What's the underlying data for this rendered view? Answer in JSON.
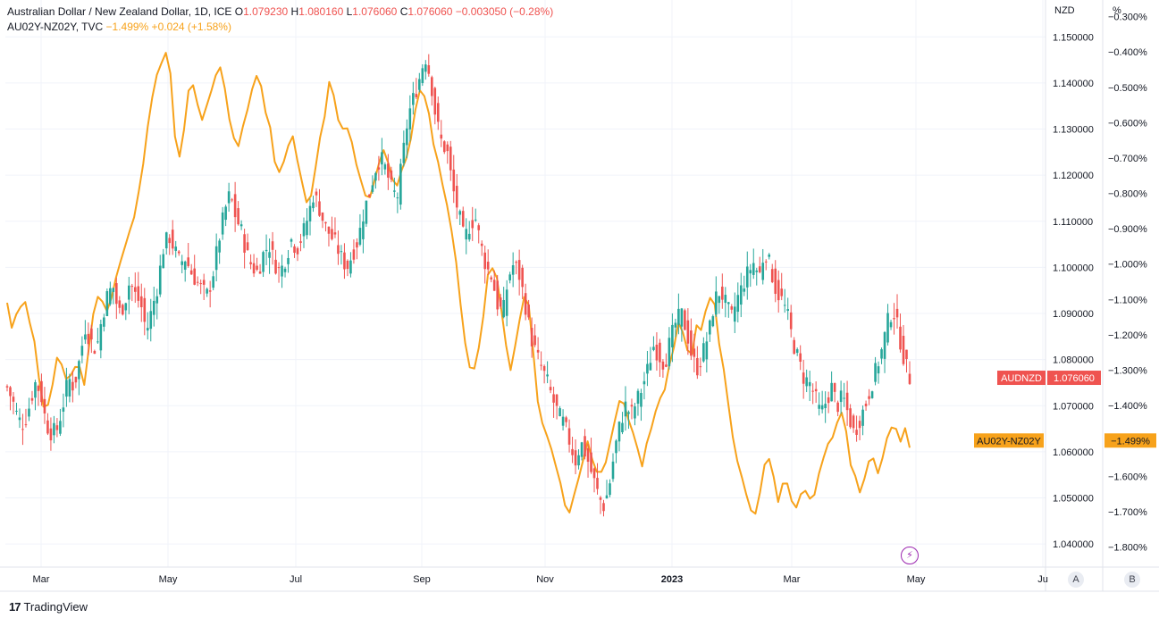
{
  "header": {
    "symbol": "Australian Dollar / New Zealand Dollar, 1D, ICE",
    "o_label": "O",
    "o_value": "1.079230",
    "h_label": "H",
    "h_value": "1.080160",
    "l_label": "L",
    "l_value": "1.076060",
    "c_label": "C",
    "c_value": "1.076060",
    "change": "−0.003050 (−0.28%)",
    "overlay_symbol": "AU02Y-NZ02Y, TVC",
    "overlay_values": "−1.499%  +0.024 (+1.58%)"
  },
  "footer": {
    "brand": "TradingView"
  },
  "buttons": {
    "a": "A",
    "b": "B"
  },
  "colors": {
    "up": "#26a69a",
    "down": "#ef5350",
    "spread": "#f7a21b",
    "grid": "#f0f3fa",
    "axis_text": "#131722",
    "event": "#9c27b0"
  },
  "chart_data": {
    "type": "candlestick_with_line_overlay",
    "title": "Australian Dollar / New Zealand Dollar, 1D, ICE",
    "left_axis": {
      "unit_label": "NZD",
      "range": [
        1.035,
        1.158
      ],
      "ticks": [
        "1.150000",
        "1.140000",
        "1.130000",
        "1.120000",
        "1.110000",
        "1.100000",
        "1.090000",
        "1.080000",
        "1.070000",
        "1.060000",
        "1.050000",
        "1.040000"
      ]
    },
    "right_axis": {
      "unit_label": "%",
      "range": [
        -1.857,
        -0.253
      ],
      "ticks": [
        "-0.300%",
        "-0.400%",
        "-0.500%",
        "-0.600%",
        "-0.700%",
        "-0.800%",
        "-0.900%",
        "-1.000%",
        "-1.100%",
        "-1.200%",
        "-1.300%",
        "-1.400%",
        "-1.500%",
        "-1.600%",
        "-1.700%",
        "-1.800%"
      ]
    },
    "x_labels": [
      "Mar",
      "May",
      "Jul",
      "Sep",
      "Nov",
      "2023",
      "Mar",
      "May",
      "Ju"
    ],
    "price_anchors": [
      1.074,
      1.071,
      1.067,
      1.066,
      1.07,
      1.075,
      1.073,
      1.066,
      1.064,
      1.065,
      1.07,
      1.076,
      1.074,
      1.08,
      1.087,
      1.084,
      1.082,
      1.089,
      1.094,
      1.096,
      1.09,
      1.092,
      1.097,
      1.094,
      1.092,
      1.086,
      1.091,
      1.096,
      1.104,
      1.107,
      1.104,
      1.101,
      1.102,
      1.099,
      1.097,
      1.095,
      1.094,
      1.099,
      1.106,
      1.112,
      1.116,
      1.111,
      1.108,
      1.103,
      1.1,
      1.099,
      1.103,
      1.105,
      1.101,
      1.099,
      1.102,
      1.106,
      1.104,
      1.107,
      1.111,
      1.116,
      1.113,
      1.109,
      1.107,
      1.105,
      1.102,
      1.1,
      1.103,
      1.106,
      1.112,
      1.116,
      1.121,
      1.124,
      1.121,
      1.117,
      1.115,
      1.124,
      1.133,
      1.137,
      1.141,
      1.146,
      1.141,
      1.132,
      1.127,
      1.125,
      1.117,
      1.112,
      1.106,
      1.109,
      1.111,
      1.105,
      1.1,
      1.098,
      1.092,
      1.09,
      1.098,
      1.101,
      1.098,
      1.092,
      1.085,
      1.081,
      1.078,
      1.075,
      1.071,
      1.068,
      1.066,
      1.062,
      1.058,
      1.062,
      1.059,
      1.055,
      1.051,
      1.048,
      1.052,
      1.06,
      1.066,
      1.07,
      1.068,
      1.071,
      1.074,
      1.078,
      1.083,
      1.081,
      1.079,
      1.084,
      1.088,
      1.09,
      1.086,
      1.08,
      1.078,
      1.082,
      1.086,
      1.093,
      1.095,
      1.092,
      1.089,
      1.093,
      1.096,
      1.099,
      1.101,
      1.098,
      1.104,
      1.1,
      1.095,
      1.093,
      1.09,
      1.084,
      1.08,
      1.076,
      1.075,
      1.072,
      1.068,
      1.071,
      1.074,
      1.07,
      1.072,
      1.068,
      1.064,
      1.067,
      1.07,
      1.074,
      1.078,
      1.082,
      1.088,
      1.091,
      1.086,
      1.08,
      1.076
    ],
    "last_price": {
      "symbol": "AUDNZD",
      "value": "1.076060"
    },
    "spread_anchors": [
      -1.1,
      -1.19,
      -1.13,
      -1.09,
      -1.15,
      -1.22,
      -1.34,
      -1.43,
      -1.38,
      -1.26,
      -1.29,
      -1.33,
      -1.3,
      -1.27,
      -1.35,
      -1.22,
      -1.12,
      -1.08,
      -1.14,
      -1.09,
      -1.04,
      -0.98,
      -0.93,
      -0.88,
      -0.81,
      -0.7,
      -0.58,
      -0.48,
      -0.43,
      -0.4,
      -0.46,
      -0.71,
      -0.68,
      -0.52,
      -0.5,
      -0.55,
      -0.6,
      -0.52,
      -0.48,
      -0.44,
      -0.53,
      -0.61,
      -0.68,
      -0.62,
      -0.56,
      -0.5,
      -0.44,
      -0.55,
      -0.6,
      -0.72,
      -0.74,
      -0.68,
      -0.63,
      -0.7,
      -0.78,
      -0.84,
      -0.77,
      -0.65,
      -0.58,
      -0.47,
      -0.55,
      -0.63,
      -0.6,
      -0.66,
      -0.72,
      -0.78,
      -0.83,
      -0.77,
      -0.72,
      -0.68,
      -0.74,
      -0.78,
      -0.75,
      -0.7,
      -0.63,
      -0.52,
      -0.5,
      -0.56,
      -0.66,
      -0.73,
      -0.8,
      -0.88,
      -0.99,
      -1.12,
      -1.25,
      -1.31,
      -1.27,
      -1.16,
      -1.02,
      -1.0,
      -1.09,
      -1.21,
      -1.3,
      -1.22,
      -1.12,
      -1.06,
      -1.22,
      -1.38,
      -1.46,
      -1.49,
      -1.55,
      -1.61,
      -1.68,
      -1.72,
      -1.63,
      -1.58,
      -1.5,
      -1.55,
      -1.6,
      -1.58,
      -1.52,
      -1.45,
      -1.38,
      -1.4,
      -1.46,
      -1.5,
      -1.57,
      -1.51,
      -1.44,
      -1.4,
      -1.37,
      -1.3,
      -1.22,
      -1.15,
      -1.24,
      -1.27,
      -1.17,
      -1.19,
      -1.11,
      -1.07,
      -1.2,
      -1.3,
      -1.41,
      -1.52,
      -1.58,
      -1.64,
      -1.69,
      -1.72,
      -1.61,
      -1.54,
      -1.58,
      -1.67,
      -1.61,
      -1.63,
      -1.7,
      -1.66,
      -1.63,
      -1.68,
      -1.62,
      -1.56,
      -1.52,
      -1.48,
      -1.44,
      -1.41,
      -1.55,
      -1.6,
      -1.66,
      -1.59,
      -1.53,
      -1.6,
      -1.55,
      -1.48,
      -1.44,
      -1.51,
      -1.46,
      -1.52
    ],
    "last_spread": {
      "symbol": "AU02Y-NZ02Y",
      "value": "-1.499%"
    }
  }
}
